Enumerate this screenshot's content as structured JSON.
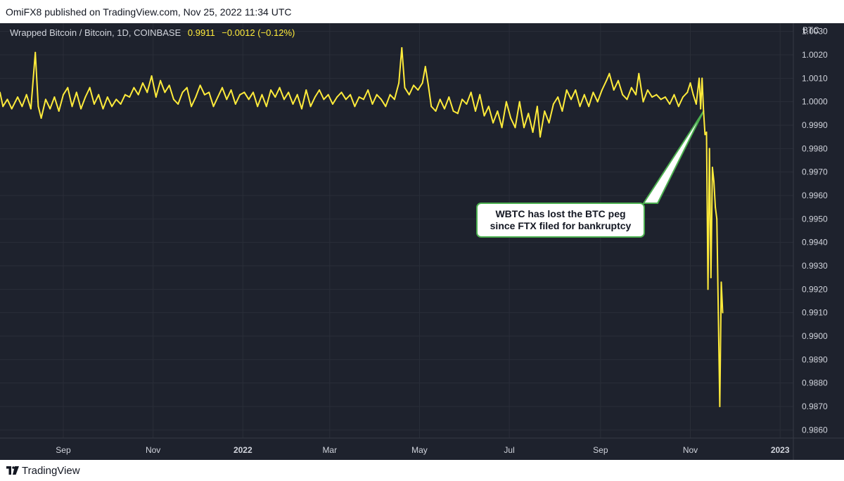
{
  "header": {
    "publisher_line": "OmiFX8 published on TradingView.com, Nov 25, 2022 11:34 UTC"
  },
  "legend": {
    "symbol": "Wrapped Bitcoin / Bitcoin, 1D, COINBASE",
    "last": "0.9911",
    "change": "−0.0012 (−0.12%)"
  },
  "currency_label": "BTC",
  "callout": {
    "line1": "WBTC has lost the BTC peg",
    "line2": "since FTX filed for bankruptcy"
  },
  "footer": {
    "brand": "TradingView"
  },
  "colors": {
    "background": "#1e222d",
    "grid": "#2a2e39",
    "line": "#ffeb3b",
    "callout_border": "#4caf50",
    "text": "#d1d4dc"
  },
  "chart_data": {
    "type": "line",
    "title": "Wrapped Bitcoin / Bitcoin, 1D, COINBASE",
    "ylabel": "BTC",
    "xlabel": "",
    "xlim": [
      "2021-07-20",
      "2023-01-10"
    ],
    "ylim": [
      0.98565,
      1.00335
    ],
    "y_ticks": [
      1.003,
      1.002,
      1.001,
      1.0,
      0.999,
      0.998,
      0.997,
      0.996,
      0.995,
      0.994,
      0.993,
      0.992,
      0.991,
      0.99,
      0.989,
      0.988,
      0.987,
      0.986
    ],
    "y_tick_labels": [
      "1.0030",
      "1.0020",
      "1.0010",
      "1.0000",
      "0.9990",
      "0.9980",
      "0.9970",
      "0.9960",
      "0.9950",
      "0.9940",
      "0.9930",
      "0.9920",
      "0.9910",
      "0.9900",
      "0.9890",
      "0.9880",
      "0.9870",
      "0.9860"
    ],
    "x_ticks": [
      {
        "date": "2021-09-01",
        "label": "Sep",
        "bold": false
      },
      {
        "date": "2021-11-01",
        "label": "Nov",
        "bold": false
      },
      {
        "date": "2022-01-01",
        "label": "2022",
        "bold": true
      },
      {
        "date": "2022-03-01",
        "label": "Mar",
        "bold": false
      },
      {
        "date": "2022-05-01",
        "label": "May",
        "bold": false
      },
      {
        "date": "2022-07-01",
        "label": "Jul",
        "bold": false
      },
      {
        "date": "2022-09-01",
        "label": "Sep",
        "bold": false
      },
      {
        "date": "2022-11-01",
        "label": "Nov",
        "bold": false
      },
      {
        "date": "2023-01-01",
        "label": "2023",
        "bold": true
      }
    ],
    "grid": true,
    "series": [
      {
        "color": "#ffeb3b",
        "points": [
          [
            "2021-07-20",
            1.0004
          ],
          [
            "2021-07-22",
            0.9998
          ],
          [
            "2021-07-25",
            1.0001
          ],
          [
            "2021-07-28",
            0.9997
          ],
          [
            "2021-08-01",
            1.0002
          ],
          [
            "2021-08-04",
            0.9998
          ],
          [
            "2021-08-07",
            1.0003
          ],
          [
            "2021-08-10",
            0.9997
          ],
          [
            "2021-08-13",
            1.0021
          ],
          [
            "2021-08-15",
            0.9998
          ],
          [
            "2021-08-17",
            0.9993
          ],
          [
            "2021-08-20",
            1.0001
          ],
          [
            "2021-08-23",
            0.9997
          ],
          [
            "2021-08-26",
            1.0002
          ],
          [
            "2021-08-29",
            0.9996
          ],
          [
            "2021-09-01",
            1.0003
          ],
          [
            "2021-09-04",
            1.0006
          ],
          [
            "2021-09-07",
            0.9998
          ],
          [
            "2021-09-10",
            1.0004
          ],
          [
            "2021-09-13",
            0.9997
          ],
          [
            "2021-09-16",
            1.0002
          ],
          [
            "2021-09-19",
            1.0006
          ],
          [
            "2021-09-22",
            0.9999
          ],
          [
            "2021-09-25",
            1.0003
          ],
          [
            "2021-09-28",
            0.9997
          ],
          [
            "2021-10-01",
            1.0002
          ],
          [
            "2021-10-04",
            0.9998
          ],
          [
            "2021-10-07",
            1.0001
          ],
          [
            "2021-10-10",
            0.9999
          ],
          [
            "2021-10-13",
            1.0003
          ],
          [
            "2021-10-16",
            1.0002
          ],
          [
            "2021-10-19",
            1.0006
          ],
          [
            "2021-10-22",
            1.0003
          ],
          [
            "2021-10-25",
            1.0008
          ],
          [
            "2021-10-28",
            1.0004
          ],
          [
            "2021-10-31",
            1.0011
          ],
          [
            "2021-11-03",
            1.0002
          ],
          [
            "2021-11-06",
            1.0009
          ],
          [
            "2021-11-09",
            1.0004
          ],
          [
            "2021-11-12",
            1.0007
          ],
          [
            "2021-11-15",
            1.0001
          ],
          [
            "2021-11-18",
            0.9999
          ],
          [
            "2021-11-21",
            1.0004
          ],
          [
            "2021-11-24",
            1.0006
          ],
          [
            "2021-11-27",
            0.9998
          ],
          [
            "2021-11-30",
            1.0002
          ],
          [
            "2021-12-03",
            1.0007
          ],
          [
            "2021-12-06",
            1.0003
          ],
          [
            "2021-12-09",
            1.0004
          ],
          [
            "2021-12-12",
            0.9998
          ],
          [
            "2021-12-15",
            1.0002
          ],
          [
            "2021-12-18",
            1.0006
          ],
          [
            "2021-12-21",
            1.0001
          ],
          [
            "2021-12-24",
            1.0005
          ],
          [
            "2021-12-27",
            0.9999
          ],
          [
            "2021-12-30",
            1.0003
          ],
          [
            "2022-01-02",
            1.0004
          ],
          [
            "2022-01-05",
            1.0001
          ],
          [
            "2022-01-08",
            1.0004
          ],
          [
            "2022-01-11",
            0.9998
          ],
          [
            "2022-01-14",
            1.0003
          ],
          [
            "2022-01-17",
            0.9998
          ],
          [
            "2022-01-20",
            1.0005
          ],
          [
            "2022-01-23",
            1.0002
          ],
          [
            "2022-01-26",
            1.0006
          ],
          [
            "2022-01-29",
            1.0001
          ],
          [
            "2022-02-01",
            1.0004
          ],
          [
            "2022-02-04",
            0.9999
          ],
          [
            "2022-02-07",
            1.0003
          ],
          [
            "2022-02-10",
            0.9997
          ],
          [
            "2022-02-13",
            1.0005
          ],
          [
            "2022-02-16",
            0.9998
          ],
          [
            "2022-02-19",
            1.0002
          ],
          [
            "2022-02-22",
            1.0005
          ],
          [
            "2022-02-25",
            1.0001
          ],
          [
            "2022-02-28",
            1.0003
          ],
          [
            "2022-03-03",
            0.9999
          ],
          [
            "2022-03-06",
            1.0002
          ],
          [
            "2022-03-09",
            1.0004
          ],
          [
            "2022-03-12",
            1.0001
          ],
          [
            "2022-03-15",
            1.0003
          ],
          [
            "2022-03-18",
            0.9998
          ],
          [
            "2022-03-21",
            1.0002
          ],
          [
            "2022-03-24",
            1.0001
          ],
          [
            "2022-03-27",
            1.0005
          ],
          [
            "2022-03-30",
            0.9999
          ],
          [
            "2022-04-02",
            1.0003
          ],
          [
            "2022-04-05",
            1.0001
          ],
          [
            "2022-04-08",
            0.9998
          ],
          [
            "2022-04-11",
            1.0003
          ],
          [
            "2022-04-14",
            1.0001
          ],
          [
            "2022-04-17",
            1.0008
          ],
          [
            "2022-04-19",
            1.0023
          ],
          [
            "2022-04-21",
            1.0006
          ],
          [
            "2022-04-24",
            1.0003
          ],
          [
            "2022-04-27",
            1.0007
          ],
          [
            "2022-04-30",
            1.0005
          ],
          [
            "2022-05-03",
            1.0008
          ],
          [
            "2022-05-05",
            1.0015
          ],
          [
            "2022-05-07",
            1.0007
          ],
          [
            "2022-05-09",
            0.9998
          ],
          [
            "2022-05-12",
            0.9996
          ],
          [
            "2022-05-15",
            1.0001
          ],
          [
            "2022-05-18",
            0.9997
          ],
          [
            "2022-05-21",
            1.0002
          ],
          [
            "2022-05-24",
            0.9996
          ],
          [
            "2022-05-27",
            0.9995
          ],
          [
            "2022-05-30",
            1.0001
          ],
          [
            "2022-06-02",
            0.9999
          ],
          [
            "2022-06-05",
            1.0004
          ],
          [
            "2022-06-08",
            0.9996
          ],
          [
            "2022-06-11",
            1.0003
          ],
          [
            "2022-06-14",
            0.9994
          ],
          [
            "2022-06-17",
            0.9998
          ],
          [
            "2022-06-20",
            0.9991
          ],
          [
            "2022-06-23",
            0.9996
          ],
          [
            "2022-06-26",
            0.9989
          ],
          [
            "2022-06-29",
            1.0
          ],
          [
            "2022-07-02",
            0.9993
          ],
          [
            "2022-07-05",
            0.9989
          ],
          [
            "2022-07-08",
            1.0
          ],
          [
            "2022-07-11",
            0.9989
          ],
          [
            "2022-07-14",
            0.9995
          ],
          [
            "2022-07-17",
            0.9987
          ],
          [
            "2022-07-20",
            0.9998
          ],
          [
            "2022-07-22",
            0.9985
          ],
          [
            "2022-07-25",
            0.9996
          ],
          [
            "2022-07-28",
            0.9991
          ],
          [
            "2022-07-31",
            0.9999
          ],
          [
            "2022-08-03",
            1.0002
          ],
          [
            "2022-08-06",
            0.9996
          ],
          [
            "2022-08-09",
            1.0005
          ],
          [
            "2022-08-12",
            1.0001
          ],
          [
            "2022-08-15",
            1.0005
          ],
          [
            "2022-08-18",
            0.9998
          ],
          [
            "2022-08-21",
            1.0003
          ],
          [
            "2022-08-24",
            0.9998
          ],
          [
            "2022-08-27",
            1.0004
          ],
          [
            "2022-08-30",
            1.0
          ],
          [
            "2022-09-02",
            1.0005
          ],
          [
            "2022-09-05",
            1.0009
          ],
          [
            "2022-09-07",
            1.0012
          ],
          [
            "2022-09-10",
            1.0005
          ],
          [
            "2022-09-13",
            1.0009
          ],
          [
            "2022-09-16",
            1.0003
          ],
          [
            "2022-09-19",
            1.0001
          ],
          [
            "2022-09-22",
            1.0006
          ],
          [
            "2022-09-25",
            1.0003
          ],
          [
            "2022-09-27",
            1.0012
          ],
          [
            "2022-09-30",
            1.0
          ],
          [
            "2022-10-03",
            1.0005
          ],
          [
            "2022-10-06",
            1.0002
          ],
          [
            "2022-10-09",
            1.0003
          ],
          [
            "2022-10-12",
            1.0001
          ],
          [
            "2022-10-15",
            1.0002
          ],
          [
            "2022-10-18",
            0.9999
          ],
          [
            "2022-10-21",
            1.0003
          ],
          [
            "2022-10-24",
            0.9998
          ],
          [
            "2022-10-27",
            1.0002
          ],
          [
            "2022-10-30",
            1.0004
          ],
          [
            "2022-11-01",
            1.0008
          ],
          [
            "2022-11-03",
            1.0003
          ],
          [
            "2022-11-05",
            0.9999
          ],
          [
            "2022-11-07",
            1.001
          ],
          [
            "2022-11-08",
            0.9997
          ],
          [
            "2022-11-09",
            1.001
          ],
          [
            "2022-11-10",
            0.9996
          ],
          [
            "2022-11-11",
            0.9986
          ],
          [
            "2022-11-12",
            0.9987
          ],
          [
            "2022-11-13",
            0.992
          ],
          [
            "2022-11-14",
            0.998
          ],
          [
            "2022-11-15",
            0.9925
          ],
          [
            "2022-11-16",
            0.9972
          ],
          [
            "2022-11-17",
            0.9966
          ],
          [
            "2022-11-18",
            0.9955
          ],
          [
            "2022-11-19",
            0.995
          ],
          [
            "2022-11-20",
            0.991
          ],
          [
            "2022-11-21",
            0.987
          ],
          [
            "2022-11-22",
            0.9923
          ],
          [
            "2022-11-23",
            0.991
          ]
        ]
      }
    ],
    "annotations": [
      {
        "text": "WBTC has lost the BTC peg since FTX filed for bankruptcy",
        "date": "2022-11-10",
        "value": 0.9996
      }
    ]
  }
}
